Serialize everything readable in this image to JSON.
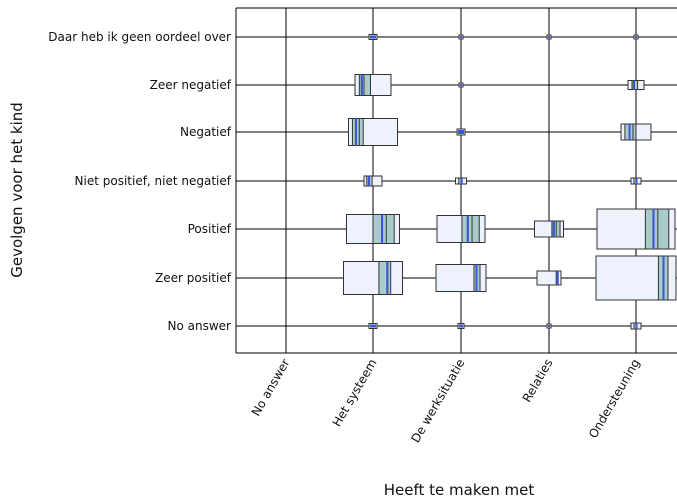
{
  "chart_data": {
    "type": "mosaic",
    "xlabel": "Heeft te maken met",
    "ylabel": "Gevolgen voor het kind",
    "x_categories": [
      "No answer",
      "Het systeem",
      "De werksituatie",
      "Relaties",
      "Ondersteuning"
    ],
    "y_categories": [
      "Daar heb ik geen oordeel over",
      "Zeer negatief",
      "Negatief",
      "Niet positief, niet negatief",
      "Positief",
      "Zeer positief",
      "No answer"
    ],
    "cells": [
      {
        "x": "Het systeem",
        "y": "Daar heb ik geen oordeel over",
        "width": 8,
        "height": 5,
        "fill_segments": [
          0.3,
          0.6,
          1.0
        ]
      },
      {
        "x": "De werksituatie",
        "y": "Daar heb ik geen oordeel over",
        "width": 4,
        "height": 4,
        "fill_segments": [
          1.0
        ]
      },
      {
        "x": "Relaties",
        "y": "Daar heb ik geen oordeel over",
        "width": 4,
        "height": 4,
        "fill_segments": [
          1.0
        ]
      },
      {
        "x": "Ondersteuning",
        "y": "Daar heb ik geen oordeel over",
        "width": 4,
        "height": 4,
        "fill_segments": [
          1.0
        ]
      },
      {
        "x": "Het systeem",
        "y": "Zeer negatief",
        "width": 36,
        "height": 21,
        "fill_segments": [
          0.12,
          0.2,
          0.25,
          0.43
        ]
      },
      {
        "x": "De werksituatie",
        "y": "Zeer negatief",
        "width": 4,
        "height": 4,
        "fill_segments": [
          1.0
        ]
      },
      {
        "x": "Ondersteuning",
        "y": "Zeer negatief",
        "width": 16,
        "height": 9,
        "fill_segments": [
          0.25,
          0.4,
          0.6
        ]
      },
      {
        "x": "Het systeem",
        "y": "Negatief",
        "width": 49,
        "height": 27,
        "fill_segments": [
          0.08,
          0.16,
          0.22,
          0.3
        ]
      },
      {
        "x": "De werksituatie",
        "y": "Negatief",
        "width": 8,
        "height": 6,
        "fill_segments": [
          0.5
        ]
      },
      {
        "x": "Ondersteuning",
        "y": "Negatief",
        "width": 30,
        "height": 16,
        "fill_segments": [
          0.13,
          0.3,
          0.4,
          0.5
        ]
      },
      {
        "x": "Het systeem",
        "y": "Niet positief, niet negatief",
        "width": 18,
        "height": 10,
        "fill_segments": [
          0.15,
          0.3,
          0.45
        ]
      },
      {
        "x": "De werksituatie",
        "y": "Niet positief, niet negatief",
        "width": 11,
        "height": 6,
        "fill_segments": [
          0.3,
          0.6
        ]
      },
      {
        "x": "Ondersteuning",
        "y": "Niet positief, niet negatief",
        "width": 10,
        "height": 6,
        "fill_segments": [
          0.3,
          0.6
        ]
      },
      {
        "x": "Het systeem",
        "y": "Positief",
        "width": 53,
        "height": 29,
        "fill_segments": [
          0.5,
          0.68,
          0.75,
          0.9
        ]
      },
      {
        "x": "De werksituatie",
        "y": "Positief",
        "width": 48,
        "height": 27,
        "fill_segments": [
          0.52,
          0.65,
          0.73,
          0.88
        ]
      },
      {
        "x": "Relaties",
        "y": "Positief",
        "width": 29,
        "height": 16,
        "fill_segments": [
          0.6,
          0.68,
          0.75,
          0.88
        ]
      },
      {
        "x": "Ondersteuning",
        "y": "Positief",
        "width": 78,
        "height": 40,
        "fill_segments": [
          0.62,
          0.73,
          0.78,
          0.92
        ]
      },
      {
        "x": "Het systeem",
        "y": "Zeer positief",
        "width": 59,
        "height": 33,
        "fill_segments": [
          0.6,
          0.75,
          0.8
        ]
      },
      {
        "x": "De werksituatie",
        "y": "Zeer positief",
        "width": 50,
        "height": 27,
        "fill_segments": [
          0.76,
          0.82,
          0.88
        ]
      },
      {
        "x": "Relaties",
        "y": "Zeer positief",
        "width": 24,
        "height": 14,
        "fill_segments": [
          0.8,
          0.88
        ]
      },
      {
        "x": "Ondersteuning",
        "y": "Zeer positief",
        "width": 80,
        "height": 44,
        "fill_segments": [
          0.78,
          0.85,
          0.9
        ]
      },
      {
        "x": "Het systeem",
        "y": "No answer",
        "width": 8,
        "height": 5,
        "fill_segments": [
          0.3,
          0.6
        ]
      },
      {
        "x": "De werksituatie",
        "y": "No answer",
        "width": 6,
        "height": 5,
        "fill_segments": [
          1.0
        ]
      },
      {
        "x": "Relaties",
        "y": "No answer",
        "width": 4,
        "height": 4,
        "fill_segments": [
          1.0
        ]
      },
      {
        "x": "Ondersteuning",
        "y": "No answer",
        "width": 10,
        "height": 6,
        "fill_segments": [
          0.3,
          0.6
        ]
      }
    ],
    "grid": true,
    "legend": "none",
    "colors": {
      "box_fill": "#eef2fc",
      "box_stroke": "#333333",
      "band_fill": "#a9cccb",
      "marker_blue": "#3a55d8",
      "grid": "#000000"
    }
  }
}
